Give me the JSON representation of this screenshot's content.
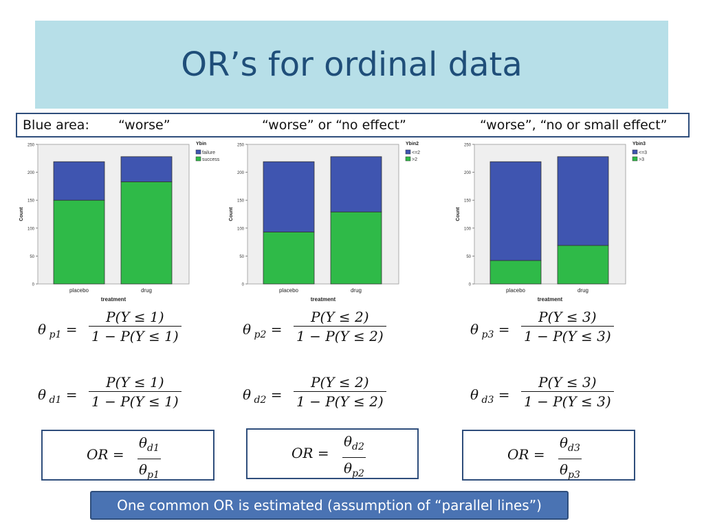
{
  "slide": {
    "title": "OR’s for ordinal data",
    "headers": {
      "prefix": "Blue area:",
      "col1": "“worse”",
      "col2": "“worse” or “no effect”",
      "col3": "“worse”, “no or small effect”"
    },
    "footnote": "One common OR is estimated (assumption of “parallel lines”)"
  },
  "colors": {
    "title_bg": "#b7dfe8",
    "title_text": "#1f4e79",
    "blue_bar": "#3f55b0",
    "green_bar": "#2fba48",
    "plot_bg": "#efefef",
    "note_bg": "#4a73b3"
  },
  "chart_data": [
    {
      "type": "bar",
      "stacked": true,
      "categories": [
        "placebo",
        "drug"
      ],
      "xlabel": "treatment",
      "ylabel": "Count",
      "ylim": [
        0,
        250
      ],
      "yticks": [
        "0",
        "50",
        "100",
        "150",
        "200",
        "250"
      ],
      "legend_title": "Ybin",
      "series": [
        {
          "name": "failure",
          "color": "#3f55b0",
          "values": [
            69,
            45
          ]
        },
        {
          "name": "success",
          "color": "#2fba48",
          "values": [
            150,
            183
          ]
        }
      ]
    },
    {
      "type": "bar",
      "stacked": true,
      "categories": [
        "placebo",
        "drug"
      ],
      "xlabel": "treatment",
      "ylabel": "Count",
      "ylim": [
        0,
        250
      ],
      "yticks": [
        "0",
        "50",
        "100",
        "150",
        "200",
        "250"
      ],
      "legend_title": "Ybin2",
      "series": [
        {
          "name": "<=2",
          "color": "#3f55b0",
          "values": [
            126,
            99
          ]
        },
        {
          "name": ">2",
          "color": "#2fba48",
          "values": [
            93,
            129
          ]
        }
      ]
    },
    {
      "type": "bar",
      "stacked": true,
      "categories": [
        "placebo",
        "drug"
      ],
      "xlabel": "treatment",
      "ylabel": "Count",
      "ylim": [
        0,
        250
      ],
      "yticks": [
        "0",
        "50",
        "100",
        "150",
        "200",
        "250"
      ],
      "legend_title": "Ybin3",
      "series": [
        {
          "name": "<=3",
          "color": "#3f55b0",
          "values": [
            177,
            159
          ]
        },
        {
          "name": ">3",
          "color": "#2fba48",
          "values": [
            42,
            69
          ]
        }
      ]
    }
  ],
  "formulas": [
    {
      "theta_p": {
        "sym": "θ",
        "sub": "p1",
        "num": "P(Y ≤ 1)",
        "den": "1 − P(Y ≤ 1)"
      },
      "theta_d": {
        "sym": "θ",
        "sub": "d1",
        "num": "P(Y ≤ 1)",
        "den": "1 − P(Y ≤ 1)"
      },
      "or": {
        "lhs": "OR =",
        "num_sym": "θ",
        "num_sub": "d1",
        "den_sym": "θ",
        "den_sub": "p1"
      }
    },
    {
      "theta_p": {
        "sym": "θ",
        "sub": "p2",
        "num": "P(Y ≤ 2)",
        "den": "1 − P(Y ≤ 2)"
      },
      "theta_d": {
        "sym": "θ",
        "sub": "d2",
        "num": "P(Y ≤ 2)",
        "den": "1 − P(Y ≤ 2)"
      },
      "or": {
        "lhs": "OR =",
        "num_sym": "θ",
        "num_sub": "d2",
        "den_sym": "θ",
        "den_sub": "p2"
      }
    },
    {
      "theta_p": {
        "sym": "θ",
        "sub": "p3",
        "num": "P(Y ≤ 3)",
        "den": "1 − P(Y ≤ 3)"
      },
      "theta_d": {
        "sym": "θ",
        "sub": "d3",
        "num": "P(Y ≤ 3)",
        "den": "1 − P(Y ≤ 3)"
      },
      "or": {
        "lhs": "OR =",
        "num_sym": "θ",
        "num_sub": "d3",
        "den_sym": "θ",
        "den_sub": "p3"
      }
    }
  ]
}
